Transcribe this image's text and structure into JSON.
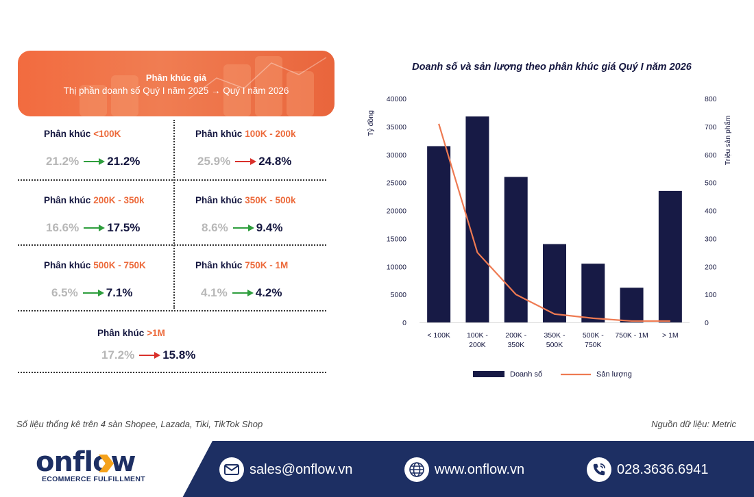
{
  "banner": {
    "title": "Phân khúc giá",
    "subtitle": "Thị phần doanh số Quý I năm 2025 → Quý I năm 2026"
  },
  "segments": [
    {
      "prefix": "Phân khúc",
      "range": "<100K",
      "old": "21.2%",
      "new": "21.2%",
      "trend": "up",
      "trend_color": "#2e9e3d"
    },
    {
      "prefix": "Phân khúc",
      "range": "100K - 200k",
      "old": "25.9%",
      "new": "24.8%",
      "trend": "down",
      "trend_color": "#d9302b"
    },
    {
      "prefix": "Phân khúc",
      "range": "200K - 350k",
      "old": "16.6%",
      "new": "17.5%",
      "trend": "up",
      "trend_color": "#2e9e3d"
    },
    {
      "prefix": "Phân khúc",
      "range": "350K - 500k",
      "old": "8.6%",
      "new": "9.4%",
      "trend": "up",
      "trend_color": "#2e9e3d"
    },
    {
      "prefix": "Phân khúc",
      "range": "500K - 750K",
      "old": "6.5%",
      "new": "7.1%",
      "trend": "up",
      "trend_color": "#2e9e3d"
    },
    {
      "prefix": "Phân khúc",
      "range": "750K - 1M",
      "old": "4.1%",
      "new": "4.2%",
      "trend": "up",
      "trend_color": "#2e9e3d"
    },
    {
      "prefix": "Phân khúc",
      "range": ">1M",
      "old": "17.2%",
      "new": "15.8%",
      "trend": "down",
      "trend_color": "#d9302b"
    }
  ],
  "chart_data": {
    "type": "bar",
    "title": "Doanh số và sản lượng theo phân khúc giá Quý I năm 2026",
    "categories": [
      "< 100K",
      "100K - 200K",
      "200K - 350K",
      "350K - 500K",
      "500K - 750K",
      "750K - 1M",
      "> 1M"
    ],
    "ylabel": "Tỷ đồng",
    "y2label": "Triệu sản phẩm",
    "ylim": [
      0,
      40000
    ],
    "y2lim": [
      0,
      800
    ],
    "yticks": [
      "0",
      "5000",
      "10000",
      "15000",
      "20000",
      "25000",
      "30000",
      "35000",
      "40000"
    ],
    "y2ticks": [
      "0",
      "100",
      "200",
      "300",
      "400",
      "500",
      "600",
      "700",
      "800"
    ],
    "series": [
      {
        "name": "Doanh số",
        "kind": "bar",
        "axis": "left",
        "color": "#171a45",
        "values": [
          31500,
          36800,
          26000,
          14000,
          10500,
          6200,
          23500
        ]
      },
      {
        "name": "Sản lượng",
        "kind": "line",
        "axis": "right",
        "color": "#ee7a52",
        "values": [
          710,
          250,
          100,
          30,
          15,
          5,
          5
        ]
      }
    ],
    "legend_position": "bottom",
    "grid": false
  },
  "footnote_left": "Số liệu thống kê trên 4 sàn Shopee, Lazada, Tiki, TikTok Shop",
  "footnote_right": "Nguồn dữ liệu: Metric",
  "footer": {
    "logo_text": "onflow",
    "logo_sub": "ECOMMERCE FULFILLMENT",
    "email": "sales@onflow.vn",
    "website": "www.onflow.vn",
    "phone": "028.3636.6941",
    "brand_color": "#1d2f63",
    "accent_color": "#f5a21b"
  }
}
